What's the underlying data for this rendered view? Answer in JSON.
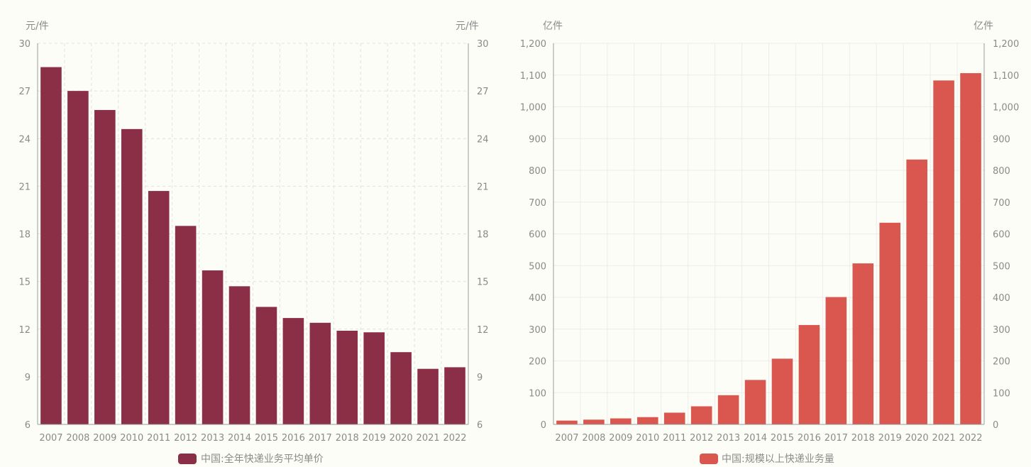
{
  "chart_data": [
    {
      "type": "bar",
      "title": "",
      "categories": [
        "2007",
        "2008",
        "2009",
        "2010",
        "2011",
        "2012",
        "2013",
        "2014",
        "2015",
        "2016",
        "2017",
        "2018",
        "2019",
        "2020",
        "2021",
        "2022"
      ],
      "series": [
        {
          "name": "中国:全年快递业务平均单价",
          "values": [
            28.5,
            27.0,
            25.8,
            24.6,
            20.7,
            18.5,
            15.7,
            14.7,
            13.4,
            12.7,
            12.4,
            11.9,
            11.8,
            10.55,
            9.5,
            9.6
          ]
        }
      ],
      "ylabel_left": "元/件",
      "ylabel_right": "元/件",
      "ylim": [
        6,
        30
      ],
      "yticks": [
        6,
        9,
        12,
        15,
        18,
        21,
        24,
        27,
        30
      ],
      "ytick_labels": [
        "6",
        "9",
        "12",
        "15",
        "18",
        "21",
        "24",
        "27",
        "30"
      ],
      "grid": "dashed",
      "legend": "bottom-center",
      "color": "#8b2f47"
    },
    {
      "type": "bar",
      "title": "",
      "categories": [
        "2007",
        "2008",
        "2009",
        "2010",
        "2011",
        "2012",
        "2013",
        "2014",
        "2015",
        "2016",
        "2017",
        "2018",
        "2019",
        "2020",
        "2021",
        "2022"
      ],
      "series": [
        {
          "name": "中国:规模以上快递业务量",
          "values": [
            12,
            15,
            19,
            23,
            37,
            57,
            92,
            140,
            207,
            313,
            401,
            507,
            635,
            834,
            1083,
            1106
          ]
        }
      ],
      "ylabel_left": "亿件",
      "ylabel_right": "亿件",
      "ylim": [
        0,
        1200
      ],
      "yticks": [
        0,
        100,
        200,
        300,
        400,
        500,
        600,
        700,
        800,
        900,
        1000,
        1100,
        1200
      ],
      "ytick_labels": [
        "0",
        "100",
        "200",
        "300",
        "400",
        "500",
        "600",
        "700",
        "800",
        "900",
        "1,000",
        "1,100",
        "1,200"
      ],
      "grid": "solid",
      "legend": "bottom-center",
      "color": "#d9574e"
    }
  ]
}
